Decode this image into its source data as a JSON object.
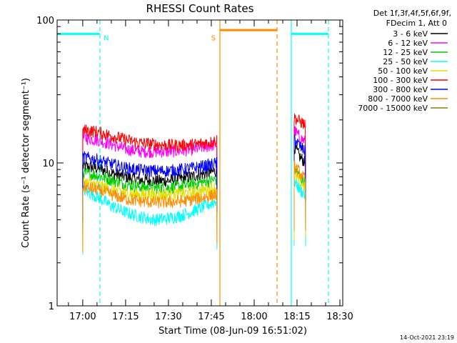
{
  "chart_data": {
    "type": "line",
    "title": "RHESSI Count Rates",
    "xlabel": "Start Time (08-Jun-09 16:51:02)",
    "ylabel": "Count Rate (s⁻¹ detector segment⁻¹)",
    "yscale": "log",
    "ylim": [
      1,
      100
    ],
    "xlim": [
      "16:51:02",
      "18:31:00"
    ],
    "y_ticks": [
      "1",
      "10",
      "100"
    ],
    "x_ticks": [
      "17:00",
      "17:15",
      "17:30",
      "17:45",
      "18:00",
      "18:15",
      "18:30"
    ],
    "legend_header": [
      "Det 1f,3f,4f,5f,6f,9f,",
      "FDecim 1, Att 0"
    ],
    "legend_position": "right",
    "timestamp": "14-Oct-2021 23:19",
    "series": [
      {
        "name": "3 - 6 keV",
        "color": "#000000",
        "segments": [
          {
            "x": [
              "17:00",
              "17:05",
              "17:10",
              "17:15",
              "17:20",
              "17:25",
              "17:30",
              "17:35",
              "17:40",
              "17:45",
              "17:47"
            ],
            "y": [
              9.5,
              9.2,
              8.5,
              8.0,
              7.6,
              7.5,
              7.5,
              7.8,
              8.2,
              8.6,
              8.8
            ]
          },
          {
            "x": [
              "18:14",
              "18:15",
              "18:16",
              "18:17",
              "18:18"
            ],
            "y": [
              13.0,
              12.0,
              11.0,
              10.5,
              10.0
            ]
          }
        ]
      },
      {
        "name": "6 - 12 keV",
        "color": "#ff00ff",
        "segments": [
          {
            "x": [
              "17:00",
              "17:05",
              "17:10",
              "17:15",
              "17:20",
              "17:25",
              "17:30",
              "17:35",
              "17:40",
              "17:45",
              "17:47"
            ],
            "y": [
              15.0,
              14.5,
              13.5,
              12.5,
              12.0,
              12.0,
              12.0,
              12.2,
              12.6,
              13.2,
              13.5
            ]
          },
          {
            "x": [
              "18:14",
              "18:15",
              "18:16",
              "18:17",
              "18:18"
            ],
            "y": [
              17.0,
              16.0,
              15.0,
              14.5,
              14.0
            ]
          }
        ]
      },
      {
        "name": "12 - 25 keV",
        "color": "#00cc00",
        "segments": [
          {
            "x": [
              "17:00",
              "17:05",
              "17:10",
              "17:15",
              "17:20",
              "17:25",
              "17:30",
              "17:35",
              "17:40",
              "17:45",
              "17:47"
            ],
            "y": [
              8.5,
              8.2,
              7.6,
              7.1,
              6.8,
              6.7,
              6.7,
              6.9,
              7.2,
              7.5,
              7.7
            ]
          },
          {
            "x": [
              "18:14",
              "18:15",
              "18:16",
              "18:17",
              "18:18"
            ],
            "y": [
              9.0,
              8.5,
              8.0,
              7.6,
              7.2
            ]
          }
        ]
      },
      {
        "name": "25 - 50 keV",
        "color": "#00ffff",
        "segments": [
          {
            "x": [
              "17:00",
              "17:05",
              "17:10",
              "17:15",
              "17:20",
              "17:25",
              "17:30",
              "17:35",
              "17:40",
              "17:45",
              "17:47"
            ],
            "y": [
              6.5,
              5.8,
              5.0,
              4.5,
              4.2,
              4.0,
              4.1,
              4.3,
              4.7,
              5.2,
              5.5
            ]
          },
          {
            "x": [
              "18:14",
              "18:15",
              "18:16",
              "18:17",
              "18:18"
            ],
            "y": [
              7.5,
              7.0,
              6.5,
              6.2,
              5.8
            ]
          }
        ]
      },
      {
        "name": "50 - 100 keV",
        "color": "#e0e000",
        "segments": [
          {
            "x": [
              "17:00",
              "17:05",
              "17:10",
              "17:15",
              "17:20",
              "17:25",
              "17:30",
              "17:35",
              "17:40",
              "17:45",
              "17:47"
            ],
            "y": [
              7.4,
              7.0,
              6.5,
              6.2,
              6.0,
              6.0,
              6.0,
              6.1,
              6.3,
              6.6,
              6.8
            ]
          },
          {
            "x": [
              "18:14",
              "18:15",
              "18:16",
              "18:17",
              "18:18"
            ],
            "y": [
              8.2,
              7.8,
              7.4,
              7.0,
              6.8
            ]
          }
        ]
      },
      {
        "name": "100 - 300 keV",
        "color": "#ff0000",
        "segments": [
          {
            "x": [
              "17:00",
              "17:05",
              "17:10",
              "17:15",
              "17:20",
              "17:25",
              "17:30",
              "17:35",
              "17:40",
              "17:45",
              "17:47"
            ],
            "y": [
              17.0,
              16.5,
              15.5,
              14.5,
              13.8,
              13.5,
              13.3,
              13.3,
              13.5,
              14.0,
              14.5
            ]
          },
          {
            "x": [
              "18:14",
              "18:15",
              "18:16",
              "18:17",
              "18:18"
            ],
            "y": [
              21.0,
              20.0,
              19.5,
              19.0,
              18.0
            ]
          }
        ]
      },
      {
        "name": "300 - 800 keV",
        "color": "#0000ff",
        "segments": [
          {
            "x": [
              "17:00",
              "17:05",
              "17:10",
              "17:15",
              "17:20",
              "17:25",
              "17:30",
              "17:35",
              "17:40",
              "17:45",
              "17:47"
            ],
            "y": [
              11.0,
              10.5,
              9.8,
              9.2,
              8.9,
              8.8,
              8.8,
              9.0,
              9.3,
              9.7,
              10.0
            ]
          },
          {
            "x": [
              "18:14",
              "18:15",
              "18:16",
              "18:17",
              "18:18"
            ],
            "y": [
              15.0,
              14.0,
              13.0,
              12.5,
              12.0
            ]
          }
        ]
      },
      {
        "name": "800 - 7000 keV",
        "color": "#ff8c00",
        "segments": [
          {
            "x": [
              "17:00",
              "17:05",
              "17:10",
              "17:15",
              "17:20",
              "17:25",
              "17:30",
              "17:35",
              "17:40",
              "17:45",
              "17:47"
            ],
            "y": [
              6.8,
              6.5,
              6.0,
              5.6,
              5.4,
              5.3,
              5.3,
              5.4,
              5.6,
              5.9,
              6.0
            ]
          },
          {
            "x": [
              "18:14",
              "18:15",
              "18:16",
              "18:17",
              "18:18"
            ],
            "y": [
              9.5,
              9.0,
              8.5,
              8.0,
              7.5
            ]
          }
        ]
      },
      {
        "name": "7000 - 15000 keV",
        "color": "#808000",
        "segments": []
      }
    ],
    "annotations": [
      {
        "label": "N",
        "color": "#00ffff",
        "marker": "dashed",
        "time": "17:06"
      },
      {
        "label": "S",
        "color": "#ff8c00",
        "marker": "solid",
        "time": "17:48"
      },
      {
        "label": "",
        "color": "#ff8c00",
        "marker": "dashed",
        "time": "18:08"
      },
      {
        "label": "",
        "color": "#00ffff",
        "marker": "solid",
        "time": "18:13"
      },
      {
        "label": "",
        "color": "#00ffff",
        "marker": "dashed",
        "time": "18:26"
      }
    ],
    "night_intervals": [
      {
        "color": "#00ffff",
        "start": "16:51:02",
        "end": "17:06",
        "level": 80
      },
      {
        "color": "#00ffff",
        "start": "18:13",
        "end": "18:26",
        "level": 80
      }
    ],
    "saa_intervals": [
      {
        "color": "#ff8c00",
        "start": "17:48",
        "end": "18:08",
        "level": 85
      }
    ]
  }
}
